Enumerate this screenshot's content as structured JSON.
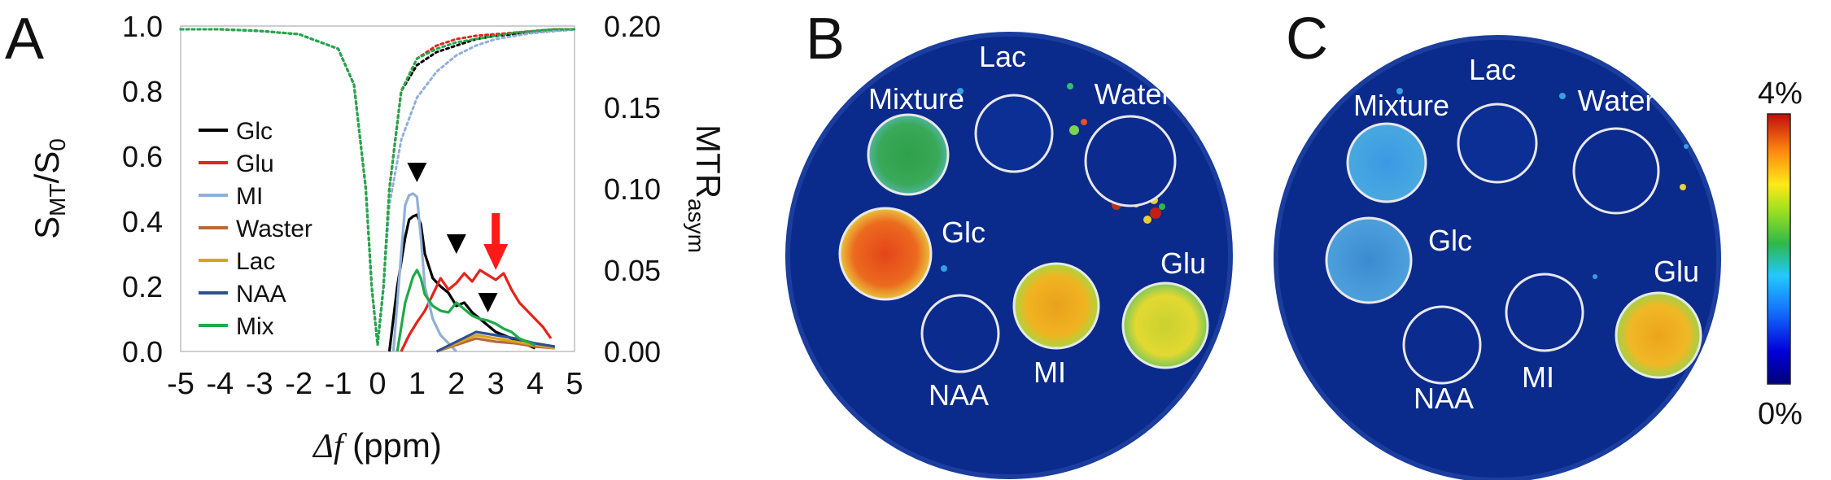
{
  "panels": {
    "a": {
      "letter": "A"
    },
    "b": {
      "letter": "B"
    },
    "c": {
      "letter": "C"
    }
  },
  "chart_data": {
    "type": "line",
    "title": "",
    "xlabel": "Δf (ppm)",
    "ylabel_left": "SMT/S0",
    "ylabel_right": "MTRasym",
    "x_ticks": [
      "-5",
      "-4",
      "-3",
      "-2",
      "-1",
      "0",
      "1",
      "2",
      "3",
      "4",
      "5"
    ],
    "xlim": [
      -5,
      5
    ],
    "y_left_ticks": [
      "0.0",
      "0.2",
      "0.4",
      "0.6",
      "0.8",
      "1.0"
    ],
    "ylim_left": [
      0,
      1
    ],
    "y_right_ticks": [
      "0.00",
      "0.05",
      "0.10",
      "0.15",
      "0.20"
    ],
    "ylim_right": [
      0,
      0.2
    ],
    "legend_position": "left-middle",
    "z_curves": [
      {
        "name": "Glc",
        "color": "#000000",
        "x": [
          -5,
          -4,
          -3,
          -2,
          -1,
          -0.6,
          -0.3,
          -0.15,
          0,
          0.15,
          0.3,
          0.6,
          1,
          1.5,
          2,
          2.5,
          3,
          3.5,
          4,
          4.5,
          5
        ],
        "y": [
          0.99,
          0.99,
          0.985,
          0.975,
          0.93,
          0.82,
          0.5,
          0.2,
          0.02,
          0.2,
          0.5,
          0.8,
          0.88,
          0.92,
          0.94,
          0.96,
          0.97,
          0.975,
          0.98,
          0.985,
          0.99
        ]
      },
      {
        "name": "Glu",
        "color": "#e3241b",
        "x": [
          -5,
          -4,
          -3,
          -2,
          -1,
          -0.6,
          -0.3,
          -0.15,
          0,
          0.15,
          0.3,
          0.6,
          1,
          1.5,
          2,
          2.5,
          3,
          3.5,
          4,
          4.5,
          5
        ],
        "y": [
          0.99,
          0.99,
          0.985,
          0.975,
          0.93,
          0.82,
          0.5,
          0.2,
          0.02,
          0.2,
          0.5,
          0.8,
          0.9,
          0.94,
          0.96,
          0.97,
          0.975,
          0.98,
          0.985,
          0.99,
          0.99
        ]
      },
      {
        "name": "MI",
        "color": "#8fb0d9",
        "x": [
          -5,
          -4,
          -3,
          -2,
          -1,
          -0.6,
          -0.3,
          -0.15,
          0,
          0.15,
          0.3,
          0.6,
          1,
          1.5,
          2,
          2.5,
          3,
          3.5,
          4,
          4.5,
          5
        ],
        "y": [
          0.99,
          0.99,
          0.985,
          0.975,
          0.93,
          0.82,
          0.5,
          0.2,
          0.02,
          0.2,
          0.45,
          0.65,
          0.78,
          0.86,
          0.91,
          0.94,
          0.96,
          0.97,
          0.98,
          0.985,
          0.99
        ]
      },
      {
        "name": "Mix",
        "color": "#1faa4a",
        "x": [
          -5,
          -4,
          -3,
          -2,
          -1,
          -0.6,
          -0.3,
          -0.15,
          0,
          0.15,
          0.3,
          0.6,
          1,
          1.5,
          2,
          2.5,
          3,
          3.5,
          4,
          4.5,
          5
        ],
        "y": [
          0.99,
          0.99,
          0.985,
          0.975,
          0.93,
          0.82,
          0.5,
          0.2,
          0.02,
          0.2,
          0.5,
          0.8,
          0.9,
          0.93,
          0.95,
          0.96,
          0.97,
          0.98,
          0.985,
          0.99,
          0.99
        ]
      }
    ],
    "series": [
      {
        "name": "Glc",
        "color": "#000000",
        "x": [
          0.3,
          0.5,
          0.7,
          0.8,
          0.9,
          1.0,
          1.1,
          1.2,
          1.4,
          1.6,
          1.8,
          2.0,
          2.2,
          2.4,
          2.6,
          2.8,
          3.0,
          3.2,
          3.4,
          3.6,
          3.8,
          4.0
        ],
        "y": [
          0.0,
          0.04,
          0.07,
          0.081,
          0.083,
          0.084,
          0.078,
          0.06,
          0.045,
          0.04,
          0.036,
          0.028,
          0.03,
          0.024,
          0.02,
          0.016,
          0.012,
          0.01,
          0.008,
          0.006,
          0.004,
          0.002
        ]
      },
      {
        "name": "Glu",
        "color": "#e3241b",
        "x": [
          0.6,
          0.8,
          1.0,
          1.2,
          1.4,
          1.6,
          1.8,
          2.0,
          2.2,
          2.4,
          2.6,
          2.8,
          3.0,
          3.2,
          3.4,
          3.6,
          3.8,
          4.0,
          4.2,
          4.4
        ],
        "y": [
          0.0,
          0.01,
          0.018,
          0.025,
          0.035,
          0.045,
          0.038,
          0.042,
          0.048,
          0.043,
          0.05,
          0.047,
          0.044,
          0.048,
          0.038,
          0.03,
          0.025,
          0.02,
          0.015,
          0.008
        ]
      },
      {
        "name": "MI",
        "color": "#8fb0d9",
        "x": [
          0.4,
          0.6,
          0.7,
          0.8,
          0.9,
          1.0,
          1.1,
          1.2,
          1.4,
          1.6,
          1.8,
          2.0
        ],
        "y": [
          0.0,
          0.06,
          0.09,
          0.096,
          0.097,
          0.095,
          0.07,
          0.04,
          0.02,
          0.01,
          0.005,
          0.0
        ]
      },
      {
        "name": "Waster",
        "color": "#b8683a",
        "x": [
          1.5,
          2.0,
          2.5,
          3.0,
          3.5,
          4.0,
          4.5
        ],
        "y": [
          0.0,
          0.004,
          0.008,
          0.006,
          0.005,
          0.003,
          0.002
        ]
      },
      {
        "name": "Lac",
        "color": "#d9a41a",
        "x": [
          1.5,
          2.0,
          2.5,
          3.0,
          3.5,
          4.0,
          4.5
        ],
        "y": [
          0.0,
          0.005,
          0.01,
          0.008,
          0.006,
          0.004,
          0.002
        ]
      },
      {
        "name": "NAA",
        "color": "#2e4f96",
        "x": [
          1.5,
          2.0,
          2.5,
          3.0,
          3.5,
          4.0,
          4.5
        ],
        "y": [
          0.0,
          0.006,
          0.012,
          0.01,
          0.008,
          0.005,
          0.003
        ]
      },
      {
        "name": "Mix",
        "color": "#1faa4a",
        "x": [
          0.5,
          0.7,
          0.9,
          1.0,
          1.1,
          1.2,
          1.4,
          1.6,
          1.8,
          2.0,
          2.2,
          2.4,
          2.6,
          2.8,
          3.0,
          3.2,
          3.4,
          3.6,
          3.8,
          4.0
        ],
        "y": [
          0.0,
          0.03,
          0.046,
          0.05,
          0.045,
          0.035,
          0.028,
          0.025,
          0.024,
          0.03,
          0.026,
          0.022,
          0.02,
          0.019,
          0.017,
          0.014,
          0.012,
          0.008,
          0.006,
          0.004
        ]
      }
    ],
    "annotations": [
      {
        "type": "black-triangle",
        "x": 1.0,
        "y": 0.104
      },
      {
        "type": "black-triangle",
        "x": 2.0,
        "y": 0.06
      },
      {
        "type": "black-triangle",
        "x": 2.8,
        "y": 0.024
      },
      {
        "type": "red-arrow",
        "x": 3.0,
        "y": 0.05
      }
    ]
  },
  "phantom_b": {
    "labels": {
      "lac": "Lac",
      "water": "Water",
      "mixture": "Mixture",
      "glc": "Glc",
      "glu": "Glu",
      "naa": "NAA",
      "mi": "MI"
    },
    "colors": {
      "background": "#0a2a8c",
      "mixture": "#2ca24a",
      "glc": "#e8541e",
      "mi": "#ecb41c",
      "glu": "#d9d431"
    }
  },
  "phantom_c": {
    "labels": {
      "lac": "Lac",
      "water": "Water",
      "mixture": "Mixture",
      "glc": "Glc",
      "glu": "Glu",
      "naa": "NAA",
      "mi": "MI"
    },
    "colors": {
      "background": "#0a2a8c",
      "mixture": "#3a9ae6",
      "glc": "#3f8fd6",
      "glu": "#ecb41c"
    }
  },
  "colorbar": {
    "max_label": "4%",
    "min_label": "0%"
  }
}
